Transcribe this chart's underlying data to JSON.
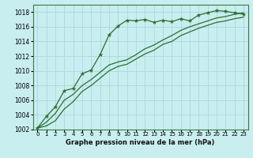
{
  "title": "Graphe pression niveau de la mer (hPa)",
  "bg_color": "#c8eef0",
  "grid_color": "#aad8dc",
  "line_color": "#2d6e2d",
  "xlim": [
    -0.5,
    23.5
  ],
  "ylim": [
    1002,
    1019
  ],
  "yticks": [
    1002,
    1004,
    1006,
    1008,
    1010,
    1012,
    1014,
    1016,
    1018
  ],
  "xticks": [
    0,
    1,
    2,
    3,
    4,
    5,
    6,
    7,
    8,
    9,
    10,
    11,
    12,
    13,
    14,
    15,
    16,
    17,
    18,
    19,
    20,
    21,
    22,
    23
  ],
  "line1_x": [
    0,
    1,
    2,
    3,
    4,
    5,
    6,
    7,
    8,
    9,
    10,
    11,
    12,
    13,
    14,
    15,
    16,
    17,
    18,
    19,
    20,
    21,
    22,
    23
  ],
  "line1_y": [
    1002.2,
    1003.8,
    1005.1,
    1007.3,
    1007.6,
    1009.6,
    1010.1,
    1012.2,
    1014.9,
    1016.1,
    1016.9,
    1016.8,
    1017.0,
    1016.6,
    1016.9,
    1016.7,
    1017.1,
    1016.8,
    1017.6,
    1017.9,
    1018.2,
    1018.1,
    1017.9,
    1017.7
  ],
  "line2_x": [
    0,
    1,
    2,
    3,
    4,
    5,
    6,
    7,
    8,
    9,
    10,
    11,
    12,
    13,
    14,
    15,
    16,
    17,
    18,
    19,
    20,
    21,
    22,
    23
  ],
  "line2_y": [
    1002.2,
    1003.0,
    1004.2,
    1006.0,
    1006.8,
    1008.0,
    1008.8,
    1009.8,
    1010.8,
    1011.2,
    1011.5,
    1012.2,
    1013.0,
    1013.5,
    1014.2,
    1014.8,
    1015.5,
    1016.0,
    1016.4,
    1016.8,
    1017.2,
    1017.4,
    1017.7,
    1017.9
  ],
  "line3_x": [
    0,
    1,
    2,
    3,
    4,
    5,
    6,
    7,
    8,
    9,
    10,
    11,
    12,
    13,
    14,
    15,
    16,
    17,
    18,
    19,
    20,
    21,
    22,
    23
  ],
  "line3_y": [
    1002.2,
    1002.5,
    1003.2,
    1004.8,
    1005.8,
    1007.2,
    1008.0,
    1009.0,
    1010.0,
    1010.6,
    1010.9,
    1011.6,
    1012.3,
    1012.8,
    1013.6,
    1014.0,
    1014.8,
    1015.3,
    1015.8,
    1016.2,
    1016.6,
    1016.8,
    1017.1,
    1017.3
  ]
}
